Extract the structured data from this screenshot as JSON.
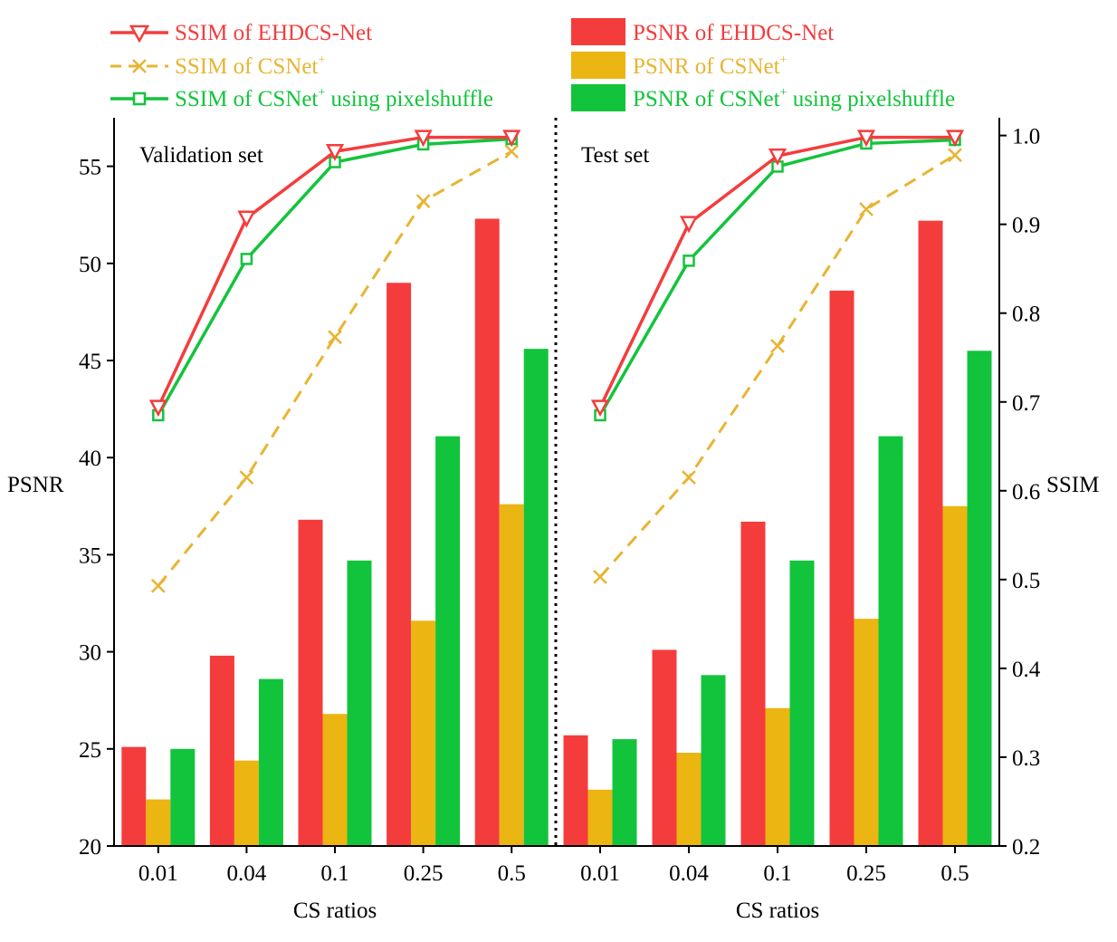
{
  "colors": {
    "ehdcs": "#f53c3c",
    "csnet_line": "#e8b432",
    "csnet_bar": "#ebb512",
    "pixel": "#12c43c",
    "axis": "#000000"
  },
  "legend": {
    "ssim_ehdcs": "SSIM of EHDCS-Net",
    "ssim_csnet": "SSIM of CSNet",
    "ssim_pixel_a": "SSIM of CSNet",
    "ssim_pixel_b": " using pixelshuffle",
    "psnr_ehdcs": "PSNR of EHDCS-Net",
    "psnr_csnet": "PSNR of CSNet",
    "psnr_pixel_a": "PSNR of CSNet",
    "psnr_pixel_b": " using pixelshuffle",
    "plus": "+"
  },
  "chart_data": {
    "type": "bar",
    "title": "",
    "xlabel": "CS ratios",
    "ylabel": "PSNR",
    "y2label": "SSIM",
    "ylim": [
      20,
      57.5
    ],
    "y2lim": [
      0.2,
      1.02
    ],
    "yticks": [
      "20",
      "25",
      "30",
      "35",
      "40",
      "45",
      "50",
      "55"
    ],
    "y2ticks": [
      "0.2",
      "0.3",
      "0.4",
      "0.5",
      "0.6",
      "0.7",
      "0.8",
      "0.9",
      "1.0"
    ],
    "categories": [
      "0.01",
      "0.04",
      "0.1",
      "0.25",
      "0.5"
    ],
    "panels": [
      {
        "label": "Validation set",
        "bars": [
          {
            "name": "PSNR of EHDCS-Net",
            "values": [
              25.1,
              29.8,
              36.8,
              49.0,
              52.3
            ]
          },
          {
            "name": "PSNR of CSNet+",
            "values": [
              22.4,
              24.4,
              26.8,
              31.6,
              37.6
            ]
          },
          {
            "name": "PSNR of CSNet+ using pixelshuffle",
            "values": [
              25.0,
              28.6,
              34.7,
              41.1,
              45.6
            ]
          }
        ],
        "lines": [
          {
            "name": "SSIM of EHDCS-Net",
            "values": [
              0.694,
              0.907,
              0.982,
              0.998,
              0.998
            ]
          },
          {
            "name": "SSIM of CSNet+",
            "values": [
              0.493,
              0.615,
              0.773,
              0.926,
              0.982
            ]
          },
          {
            "name": "SSIM of CSNet+ using pixelshuffle",
            "values": [
              0.685,
              0.861,
              0.97,
              0.99,
              0.996
            ]
          }
        ]
      },
      {
        "label": "Test set",
        "bars": [
          {
            "name": "PSNR of EHDCS-Net",
            "values": [
              25.7,
              30.1,
              36.7,
              48.6,
              52.2
            ]
          },
          {
            "name": "PSNR of CSNet+",
            "values": [
              22.9,
              24.8,
              27.1,
              31.7,
              37.5
            ]
          },
          {
            "name": "PSNR of CSNet+ using pixelshuffle",
            "values": [
              25.5,
              28.8,
              34.7,
              41.1,
              45.5
            ]
          }
        ],
        "lines": [
          {
            "name": "SSIM of EHDCS-Net",
            "values": [
              0.694,
              0.901,
              0.977,
              0.998,
              0.998
            ]
          },
          {
            "name": "SSIM of CSNet+",
            "values": [
              0.503,
              0.615,
              0.763,
              0.917,
              0.978
            ]
          },
          {
            "name": "SSIM of CSNet+ using pixelshuffle",
            "values": [
              0.685,
              0.859,
              0.965,
              0.991,
              0.995
            ]
          }
        ]
      }
    ]
  }
}
